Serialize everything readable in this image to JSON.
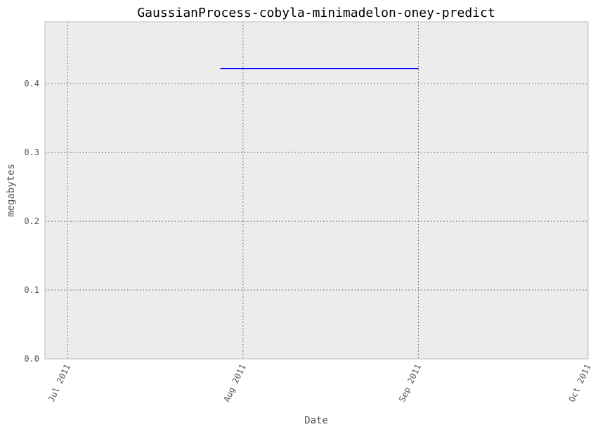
{
  "chart_data": {
    "type": "line",
    "title": "GaussianProcess-cobyla-minimadelon-oney-predict",
    "xlabel": "Date",
    "ylabel": "megabytes",
    "x_ticks": [
      "Jul 2011",
      "Aug 2011",
      "Sep 2011",
      "Oct 2011"
    ],
    "y_ticks": [
      "0.0",
      "0.1",
      "0.2",
      "0.3",
      "0.4"
    ],
    "xlim": [
      "2011-06-27",
      "2011-10-01"
    ],
    "ylim": [
      0,
      0.49
    ],
    "grid": true,
    "background": "#ececec",
    "series": [
      {
        "color": "#0000ff",
        "x": [
          "2011-07-28",
          "2011-09-01"
        ],
        "values": [
          0.422,
          0.422
        ]
      }
    ]
  }
}
